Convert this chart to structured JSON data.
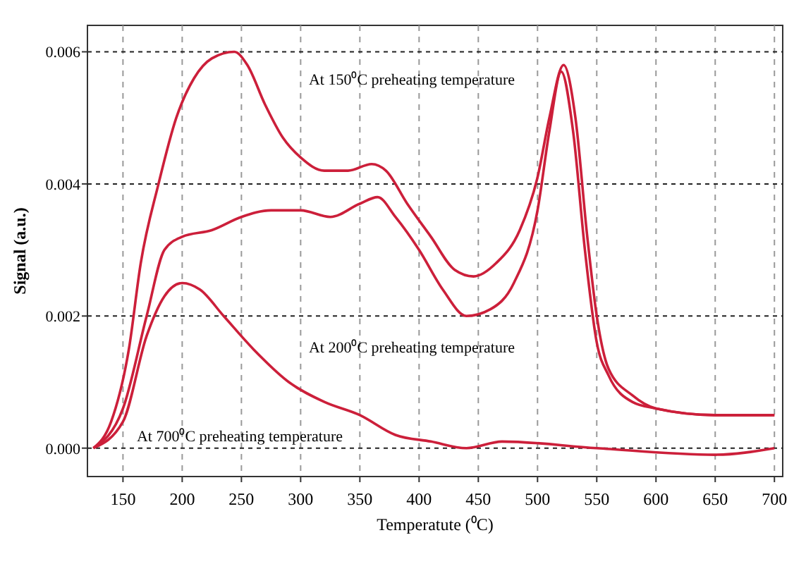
{
  "chart_data": {
    "type": "line",
    "xlabel": "Temperatute (⁰C)",
    "ylabel": "Signal (a.u.)",
    "xlim": [
      120,
      707
    ],
    "ylim": [
      -0.00043,
      0.0064
    ],
    "xticks": [
      150,
      200,
      250,
      300,
      350,
      400,
      450,
      500,
      550,
      600,
      650,
      700
    ],
    "yticks": [
      {
        "value": 0,
        "label": "0.000"
      },
      {
        "value": 0.002,
        "label": "0.002"
      },
      {
        "value": 0.004,
        "label": "0.004"
      },
      {
        "value": 0.006,
        "label": "0.006"
      }
    ],
    "grid": true,
    "line_style": "solid",
    "series": [
      {
        "color": "#cc1f3a",
        "x": [
          125,
          140,
          155,
          165,
          180,
          195,
          210,
          225,
          244,
          255,
          270,
          285,
          300,
          320,
          340,
          360,
          372,
          390,
          410,
          430,
          446,
          465,
          485,
          500,
          510,
          522,
          532,
          542,
          550,
          560,
          580,
          600,
          650,
          700
        ],
        "values": [
          0,
          0.0004,
          0.0015,
          0.0028,
          0.004,
          0.005,
          0.0056,
          0.0059,
          0.006,
          0.0058,
          0.0052,
          0.0047,
          0.0044,
          0.0042,
          0.0042,
          0.0043,
          0.0042,
          0.0037,
          0.0032,
          0.0027,
          0.0026,
          0.0028,
          0.0033,
          0.0041,
          0.005,
          0.0058,
          0.005,
          0.0032,
          0.002,
          0.0012,
          0.0008,
          0.0006,
          0.0005,
          0.0005
        ]
      },
      {
        "color": "#cc1f3a",
        "x": [
          125,
          150,
          170,
          185,
          200,
          225,
          250,
          275,
          300,
          325,
          350,
          365,
          380,
          400,
          420,
          440,
          460,
          480,
          500,
          510,
          520,
          530,
          540,
          550,
          560,
          580,
          600,
          650,
          700
        ],
        "values": [
          0,
          0.0006,
          0.002,
          0.003,
          0.0032,
          0.0033,
          0.0035,
          0.0036,
          0.0036,
          0.0035,
          0.0037,
          0.0038,
          0.0035,
          0.003,
          0.0024,
          0.002,
          0.0021,
          0.0025,
          0.0036,
          0.0048,
          0.0057,
          0.0048,
          0.003,
          0.0016,
          0.0011,
          0.0007,
          0.0006,
          0.0005,
          0.0005
        ]
      },
      {
        "color": "#cc1f3a",
        "x": [
          125,
          150,
          170,
          185,
          200,
          215,
          235,
          260,
          290,
          320,
          350,
          380,
          410,
          440,
          470,
          550,
          650,
          700
        ],
        "values": [
          0,
          0.0004,
          0.0017,
          0.0023,
          0.0025,
          0.0024,
          0.002,
          0.0015,
          0.001,
          0.0007,
          0.0005,
          0.0002,
          0.0001,
          0,
          0.0001,
          0,
          -0.0001,
          0
        ]
      }
    ],
    "annotations": [
      "At 150⁰C preheating temperature",
      "At 200⁰C preheating temperature",
      "At 700⁰C preheating temperature"
    ]
  }
}
